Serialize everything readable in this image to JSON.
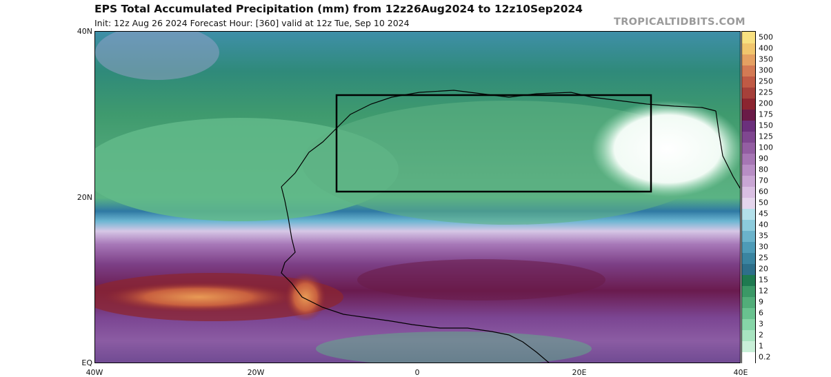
{
  "header": {
    "title": "EPS Total Accumulated Precipitation (mm) from 12z26Aug2024 to 12z10Sep2024",
    "subtitle": "Init: 12z Aug 26 2024   Forecast Hour: [360]   valid at 12z Tue, Sep 10 2024",
    "brand": "TROPICALTIDBITS.COM"
  },
  "map": {
    "lat_ticks": [
      {
        "label": "40N",
        "lat": 40
      },
      {
        "label": "20N",
        "lat": 20
      },
      {
        "label": "EQ",
        "lat": 0
      }
    ],
    "lon_ticks": [
      {
        "label": "40W",
        "lon": -40
      },
      {
        "label": "20W",
        "lon": -20
      },
      {
        "label": "0",
        "lon": 0
      },
      {
        "label": "20E",
        "lon": 20
      },
      {
        "label": "40E",
        "lon": 40
      }
    ],
    "extent": {
      "lon_min": -40,
      "lon_max": 40,
      "lat_min": 0,
      "lat_max": 40
    },
    "highlight_box": {
      "lon_min": -10,
      "lon_max": 29,
      "lat_min": 20.5,
      "lat_max": 32.5
    }
  },
  "colorbar": {
    "levels": [
      "0.2",
      "1",
      "2",
      "3",
      "6",
      "9",
      "12",
      "15",
      "20",
      "25",
      "30",
      "35",
      "40",
      "45",
      "50",
      "60",
      "70",
      "80",
      "90",
      "100",
      "125",
      "150",
      "175",
      "200",
      "225",
      "250",
      "300",
      "350",
      "400",
      "500"
    ],
    "colors": [
      "#ffffff",
      "#c9f0d8",
      "#a8e4c0",
      "#86d5a7",
      "#69c28f",
      "#52ad79",
      "#3b9866",
      "#1f7a50",
      "#2e6f8a",
      "#3a84a0",
      "#4e9bb7",
      "#6bb3cb",
      "#8ccbdc",
      "#b3e0ea",
      "#e4d5ec",
      "#d9bfe2",
      "#c9a6d4",
      "#b88ec5",
      "#a676b4",
      "#935ea2",
      "#7f4790",
      "#6b307c",
      "#6a1b47",
      "#8c2530",
      "#a6403a",
      "#c05a45",
      "#d47a54",
      "#e5a062",
      "#f1c56d",
      "#f8e080"
    ]
  }
}
